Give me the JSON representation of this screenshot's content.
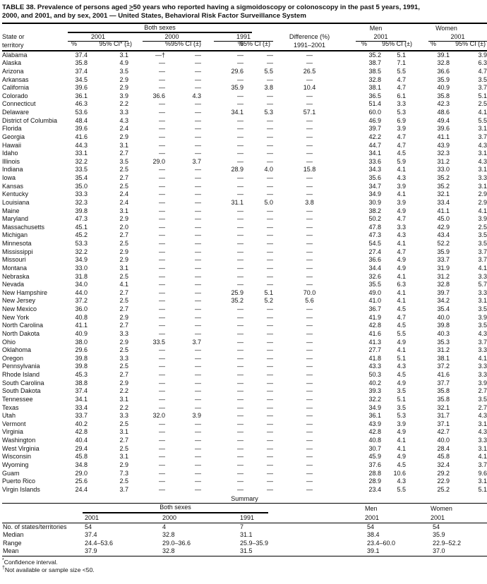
{
  "title": {
    "part1": "TABLE 38. Prevalence of persons aged ",
    "gte": ">",
    "part2": "50 years who reported having a sigmoidoscopy or colonoscopy in the past 5 years, 1991,",
    "line2": "2000, and 2001, and by sex, 2001 — United States, Behavioral Risk Factor Surveillance System"
  },
  "header": {
    "state_line1": "State or",
    "state_line2": "territory",
    "both_sexes": "Both sexes",
    "men": "Men",
    "women": "Women",
    "y2001": "2001",
    "y2000": "2000",
    "y1991": "1991",
    "pct": "%",
    "ci_star": "95% CI* (±)",
    "ci": "95% CI (±)",
    "diff_line1": "Difference (%)",
    "diff_line2": "1991–2001"
  },
  "rows": [
    [
      "Alabama",
      "37.4",
      "3.1",
      "—†",
      "—",
      "—",
      "—",
      "—",
      "35.2",
      "5.1",
      "39.1",
      "3.9"
    ],
    [
      "Alaska",
      "35.8",
      "4.9",
      "—",
      "—",
      "—",
      "—",
      "—",
      "38.7",
      "7.1",
      "32.8",
      "6.3"
    ],
    [
      "Arizona",
      "37.4",
      "3.5",
      "—",
      "—",
      "29.6",
      "5.5",
      "26.5",
      "38.5",
      "5.5",
      "36.6",
      "4.7"
    ],
    [
      "Arkansas",
      "34.5",
      "2.9",
      "—",
      "—",
      "—",
      "—",
      "—",
      "32.8",
      "4.7",
      "35.9",
      "3.5"
    ],
    [
      "California",
      "39.6",
      "2.9",
      "—",
      "—",
      "35.9",
      "3.8",
      "10.4",
      "38.1",
      "4.7",
      "40.9",
      "3.7"
    ],
    [
      "Colorado",
      "36.1",
      "3.9",
      "36.6",
      "4.3",
      "—",
      "—",
      "—",
      "36.5",
      "6.1",
      "35.8",
      "5.1"
    ],
    [
      "Connecticut",
      "46.3",
      "2.2",
      "—",
      "—",
      "—",
      "—",
      "—",
      "51.4",
      "3.3",
      "42.3",
      "2.5"
    ],
    [
      "Delaware",
      "53.6",
      "3.3",
      "—",
      "—",
      "34.1",
      "5.3",
      "57.1",
      "60.0",
      "5.3",
      "48.6",
      "4.1"
    ],
    [
      "District of Columbia",
      "48.4",
      "4.3",
      "—",
      "—",
      "—",
      "—",
      "—",
      "46.9",
      "6.9",
      "49.4",
      "5.5"
    ],
    [
      "Florida",
      "39.6",
      "2.4",
      "—",
      "—",
      "—",
      "—",
      "—",
      "39.7",
      "3.9",
      "39.6",
      "3.1"
    ],
    [
      "Georgia",
      "41.6",
      "2.9",
      "—",
      "—",
      "—",
      "—",
      "—",
      "42.2",
      "4.7",
      "41.1",
      "3.7"
    ],
    [
      "Hawaii",
      "44.3",
      "3.1",
      "—",
      "—",
      "—",
      "—",
      "—",
      "44.7",
      "4.7",
      "43.9",
      "4.3"
    ],
    [
      "Idaho",
      "33.1",
      "2.7",
      "—",
      "—",
      "—",
      "—",
      "—",
      "34.1",
      "4.5",
      "32.3",
      "3.1"
    ],
    [
      "Illinois",
      "32.2",
      "3.5",
      "29.0",
      "3.7",
      "—",
      "—",
      "—",
      "33.6",
      "5.9",
      "31.2",
      "4.3"
    ],
    [
      "Indiana",
      "33.5",
      "2.5",
      "—",
      "—",
      "28.9",
      "4.0",
      "15.8",
      "34.3",
      "4.1",
      "33.0",
      "3.1"
    ],
    [
      "Iowa",
      "35.4",
      "2.7",
      "—",
      "—",
      "—",
      "—",
      "—",
      "35.6",
      "4.3",
      "35.2",
      "3.3"
    ],
    [
      "Kansas",
      "35.0",
      "2.5",
      "—",
      "—",
      "—",
      "—",
      "—",
      "34.7",
      "3.9",
      "35.2",
      "3.1"
    ],
    [
      "Kentucky",
      "33.3",
      "2.4",
      "—",
      "—",
      "—",
      "—",
      "—",
      "34.9",
      "4.1",
      "32.1",
      "2.9"
    ],
    [
      "Louisiana",
      "32.3",
      "2.4",
      "—",
      "—",
      "31.1",
      "5.0",
      "3.8",
      "30.9",
      "3.9",
      "33.4",
      "2.9"
    ],
    [
      "Maine",
      "39.8",
      "3.1",
      "—",
      "—",
      "—",
      "—",
      "—",
      "38.2",
      "4.9",
      "41.1",
      "4.1"
    ],
    [
      "Maryland",
      "47.3",
      "2.9",
      "—",
      "—",
      "—",
      "—",
      "—",
      "50.2",
      "4.7",
      "45.0",
      "3.9"
    ],
    [
      "Massachusetts",
      "45.1",
      "2.0",
      "—",
      "—",
      "—",
      "—",
      "—",
      "47.8",
      "3.3",
      "42.9",
      "2.5"
    ],
    [
      "Michigan",
      "45.2",
      "2.7",
      "—",
      "—",
      "—",
      "—",
      "—",
      "47.3",
      "4.3",
      "43.4",
      "3.5"
    ],
    [
      "Minnesota",
      "53.3",
      "2.5",
      "—",
      "—",
      "—",
      "—",
      "—",
      "54.5",
      "4.1",
      "52.2",
      "3.5"
    ],
    [
      "Mississippi",
      "32.2",
      "2.9",
      "—",
      "—",
      "—",
      "—",
      "—",
      "27.4",
      "4.7",
      "35.9",
      "3.7"
    ],
    [
      "Missouri",
      "34.9",
      "2.9",
      "—",
      "—",
      "—",
      "—",
      "—",
      "36.6",
      "4.9",
      "33.7",
      "3.7"
    ],
    [
      "Montana",
      "33.0",
      "3.1",
      "—",
      "—",
      "—",
      "—",
      "—",
      "34.4",
      "4.9",
      "31.9",
      "4.1"
    ],
    [
      "Nebraska",
      "31.8",
      "2.5",
      "—",
      "—",
      "—",
      "—",
      "—",
      "32.6",
      "4.1",
      "31.2",
      "3.3"
    ],
    [
      "Nevada",
      "34.0",
      "4.1",
      "—",
      "—",
      "—",
      "—",
      "—",
      "35.5",
      "6.3",
      "32.8",
      "5.7"
    ],
    [
      "New Hampshire",
      "44.0",
      "2.7",
      "—",
      "—",
      "25.9",
      "5.1",
      "70.0",
      "49.0",
      "4.1",
      "39.7",
      "3.3"
    ],
    [
      "New Jersey",
      "37.2",
      "2.5",
      "—",
      "—",
      "35.2",
      "5.2",
      "5.6",
      "41.0",
      "4.1",
      "34.2",
      "3.1"
    ],
    [
      "New Mexico",
      "36.0",
      "2.7",
      "—",
      "—",
      "—",
      "—",
      "—",
      "36.7",
      "4.5",
      "35.4",
      "3.5"
    ],
    [
      "New York",
      "40.8",
      "2.9",
      "—",
      "—",
      "—",
      "—",
      "—",
      "41.9",
      "4.7",
      "40.0",
      "3.9"
    ],
    [
      "North Carolina",
      "41.1",
      "2.7",
      "—",
      "—",
      "—",
      "—",
      "—",
      "42.8",
      "4.5",
      "39.8",
      "3.5"
    ],
    [
      "North Dakota",
      "40.9",
      "3.3",
      "—",
      "—",
      "—",
      "—",
      "—",
      "41.6",
      "5.5",
      "40.3",
      "4.3"
    ],
    [
      "Ohio",
      "38.0",
      "2.9",
      "33.5",
      "3.7",
      "—",
      "—",
      "—",
      "41.3",
      "4.9",
      "35.3",
      "3.7"
    ],
    [
      "Oklahoma",
      "29.6",
      "2.5",
      "—",
      "—",
      "—",
      "—",
      "—",
      "27.7",
      "4.1",
      "31.2",
      "3.3"
    ],
    [
      "Oregon",
      "39.8",
      "3.3",
      "—",
      "—",
      "—",
      "—",
      "—",
      "41.8",
      "5.1",
      "38.1",
      "4.1"
    ],
    [
      "Pennsylvania",
      "39.8",
      "2.5",
      "—",
      "—",
      "—",
      "—",
      "—",
      "43.3",
      "4.3",
      "37.2",
      "3.3"
    ],
    [
      "Rhode Island",
      "45.3",
      "2.7",
      "—",
      "—",
      "—",
      "—",
      "—",
      "50.3",
      "4.5",
      "41.6",
      "3.3"
    ],
    [
      "South Carolina",
      "38.8",
      "2.9",
      "—",
      "—",
      "—",
      "—",
      "—",
      "40.2",
      "4.9",
      "37.7",
      "3.9"
    ],
    [
      "South Dakota",
      "37.4",
      "2.2",
      "—",
      "—",
      "—",
      "—",
      "—",
      "39.3",
      "3.5",
      "35.8",
      "2.7"
    ],
    [
      "Tennessee",
      "34.1",
      "3.1",
      "—",
      "—",
      "—",
      "—",
      "—",
      "32.2",
      "5.1",
      "35.8",
      "3.5"
    ],
    [
      "Texas",
      "33.4",
      "2.2",
      "—",
      "—",
      "—",
      "—",
      "—",
      "34.9",
      "3.5",
      "32.1",
      "2.7"
    ],
    [
      "Utah",
      "33.7",
      "3.3",
      "32.0",
      "3.9",
      "—",
      "—",
      "—",
      "36.1",
      "5.3",
      "31.7",
      "4.3"
    ],
    [
      "Vermont",
      "40.2",
      "2.5",
      "—",
      "—",
      "—",
      "—",
      "—",
      "43.9",
      "3.9",
      "37.1",
      "3.1"
    ],
    [
      "Virginia",
      "42.8",
      "3.1",
      "—",
      "—",
      "—",
      "—",
      "—",
      "42.8",
      "4.9",
      "42.7",
      "4.3"
    ],
    [
      "Washington",
      "40.4",
      "2.7",
      "—",
      "—",
      "—",
      "—",
      "—",
      "40.8",
      "4.1",
      "40.0",
      "3.3"
    ],
    [
      "West Virginia",
      "29.4",
      "2.5",
      "—",
      "—",
      "—",
      "—",
      "—",
      "30.7",
      "4.1",
      "28.4",
      "3.1"
    ],
    [
      "Wisconsin",
      "45.8",
      "3.1",
      "—",
      "—",
      "—",
      "—",
      "—",
      "45.9",
      "4.9",
      "45.8",
      "4.1"
    ],
    [
      "Wyoming",
      "34.8",
      "2.9",
      "—",
      "—",
      "—",
      "—",
      "—",
      "37.6",
      "4.5",
      "32.4",
      "3.7"
    ],
    [
      "Guam",
      "29.0",
      "7.3",
      "—",
      "—",
      "—",
      "—",
      "—",
      "28.8",
      "10.6",
      "29.2",
      "9.6"
    ],
    [
      "Puerto Rico",
      "25.6",
      "2.5",
      "—",
      "—",
      "—",
      "—",
      "—",
      "28.9",
      "4.3",
      "22.9",
      "3.1"
    ],
    [
      "Virgin Islands",
      "24.4",
      "3.7",
      "—",
      "—",
      "—",
      "—",
      "—",
      "23.4",
      "5.5",
      "25.2",
      "5.1"
    ]
  ],
  "summary": {
    "title": "Summary",
    "both_sexes": "Both sexes",
    "men": "Men",
    "women": "Women",
    "y2001": "2001",
    "y2000": "2000",
    "y1991": "1991",
    "rows": [
      [
        "No. of states/territories",
        "54",
        "4",
        "7",
        "54",
        "54"
      ],
      [
        "Median",
        "37.4",
        "32.8",
        "31.1",
        "38.4",
        "35.9"
      ],
      [
        "Range",
        "24.4–53.6",
        "29.0–36.6",
        "25.9–35.9",
        "23.4–60.0",
        "22.9–52.2"
      ],
      [
        "Mean",
        "37.9",
        "32.8",
        "31.5",
        "39.1",
        "37.0"
      ]
    ]
  },
  "footnotes": {
    "star_sym": "*",
    "star_text": "Confidence interval.",
    "dagger_sym": "†",
    "dagger_text": "Not available or sample size <50."
  }
}
